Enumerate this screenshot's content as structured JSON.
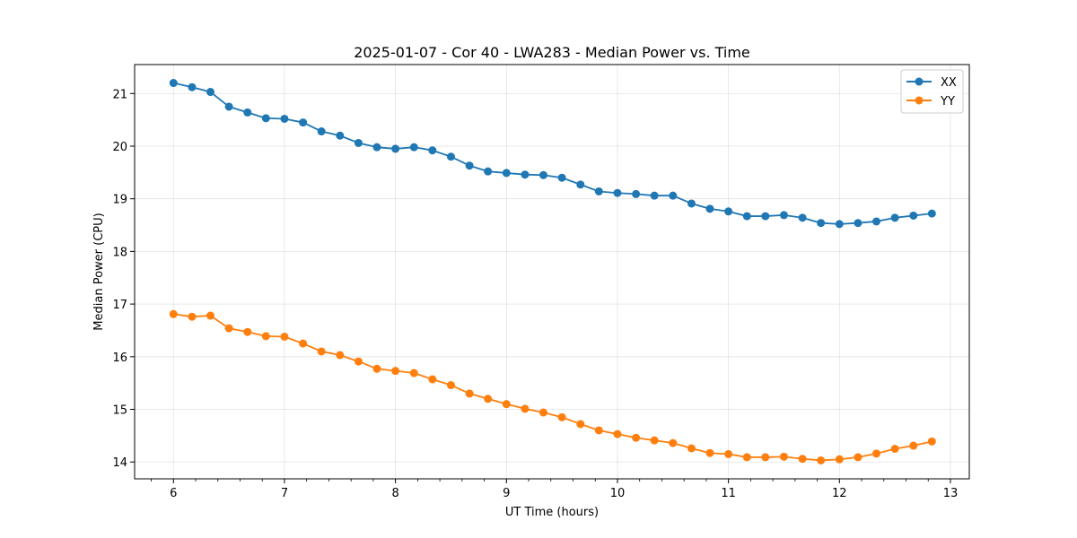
{
  "chart_data": {
    "type": "line",
    "title": "2025-01-07 - Cor 40 - LWA283 - Median Power vs. Time",
    "xlabel": "UT Time (hours)",
    "ylabel": "Median Power (CPU)",
    "xlim": [
      5.65,
      13.17
    ],
    "ylim": [
      13.68,
      21.55
    ],
    "xticks": [
      "6",
      "7",
      "8",
      "9",
      "10",
      "11",
      "12",
      "13"
    ],
    "yticks": [
      "14",
      "15",
      "16",
      "17",
      "18",
      "19",
      "20",
      "21"
    ],
    "grid": true,
    "legend_position": "top-right",
    "x": [
      6.0,
      6.167,
      6.333,
      6.5,
      6.667,
      6.833,
      7.0,
      7.167,
      7.333,
      7.5,
      7.667,
      7.833,
      8.0,
      8.167,
      8.333,
      8.5,
      8.667,
      8.833,
      9.0,
      9.167,
      9.333,
      9.5,
      9.667,
      9.833,
      10.0,
      10.167,
      10.333,
      10.5,
      10.667,
      10.833,
      11.0,
      11.167,
      11.333,
      11.5,
      11.667,
      11.833,
      12.0,
      12.167,
      12.333,
      12.5,
      12.667,
      12.833
    ],
    "series": [
      {
        "name": "XX",
        "color": "#1f77b4",
        "values": [
          21.2,
          21.12,
          21.03,
          20.75,
          20.64,
          20.53,
          20.52,
          20.45,
          20.28,
          20.2,
          20.06,
          19.98,
          19.95,
          19.98,
          19.92,
          19.8,
          19.63,
          19.52,
          19.49,
          19.46,
          19.45,
          19.4,
          19.27,
          19.14,
          19.11,
          19.09,
          19.06,
          19.06,
          18.91,
          18.81,
          18.76,
          18.67,
          18.67,
          18.69,
          18.64,
          18.54,
          18.52,
          18.54,
          18.57,
          18.64,
          18.68,
          18.72
        ]
      },
      {
        "name": "YY",
        "color": "#ff7f0e",
        "values": [
          16.81,
          16.76,
          16.78,
          16.54,
          16.47,
          16.39,
          16.38,
          16.25,
          16.1,
          16.03,
          15.91,
          15.77,
          15.73,
          15.69,
          15.57,
          15.46,
          15.3,
          15.2,
          15.1,
          15.01,
          14.94,
          14.85,
          14.72,
          14.6,
          14.53,
          14.46,
          14.41,
          14.36,
          14.26,
          14.17,
          14.15,
          14.09,
          14.09,
          14.1,
          14.06,
          14.03,
          14.05,
          14.09,
          14.16,
          14.25,
          14.31,
          14.39
        ]
      }
    ]
  }
}
